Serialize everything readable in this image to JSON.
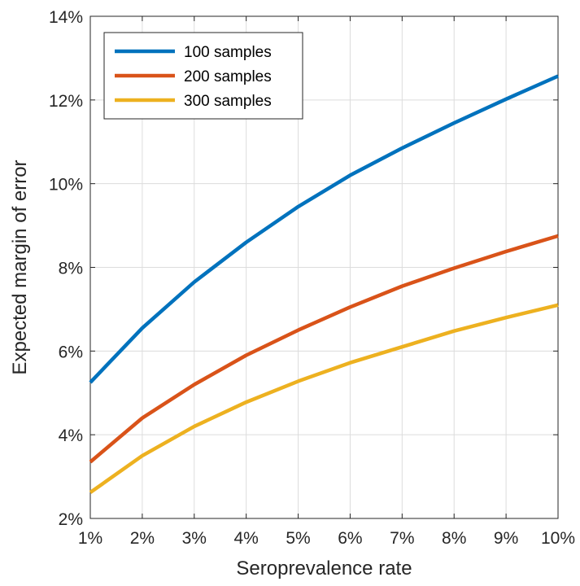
{
  "chart_data": {
    "type": "line",
    "title": "",
    "xlabel": "Seroprevalence rate",
    "ylabel": "Expected margin of error",
    "xlim": [
      1,
      10
    ],
    "ylim": [
      2,
      14
    ],
    "x_ticks": [
      1,
      2,
      3,
      4,
      5,
      6,
      7,
      8,
      9,
      10
    ],
    "x_tick_labels": [
      "1%",
      "2%",
      "3%",
      "4%",
      "5%",
      "6%",
      "7%",
      "8%",
      "9%",
      "10%"
    ],
    "y_ticks": [
      2,
      4,
      6,
      8,
      10,
      12,
      14
    ],
    "y_tick_labels": [
      "2%",
      "4%",
      "6%",
      "8%",
      "10%",
      "12%",
      "14%"
    ],
    "grid": true,
    "legend_position": "top-left",
    "x": [
      1,
      2,
      3,
      4,
      5,
      6,
      7,
      8,
      9,
      10
    ],
    "series": [
      {
        "name": "100 samples",
        "color": "#0072BD",
        "values": [
          5.25,
          6.55,
          7.65,
          8.6,
          9.45,
          10.2,
          10.85,
          11.45,
          12.02,
          12.57
        ]
      },
      {
        "name": "200 samples",
        "color": "#D95319",
        "values": [
          3.35,
          4.4,
          5.2,
          5.9,
          6.5,
          7.05,
          7.55,
          7.98,
          8.38,
          8.75
        ]
      },
      {
        "name": "300 samples",
        "color": "#EDB120",
        "values": [
          2.62,
          3.5,
          4.2,
          4.78,
          5.28,
          5.72,
          6.1,
          6.48,
          6.8,
          7.1
        ]
      }
    ]
  }
}
